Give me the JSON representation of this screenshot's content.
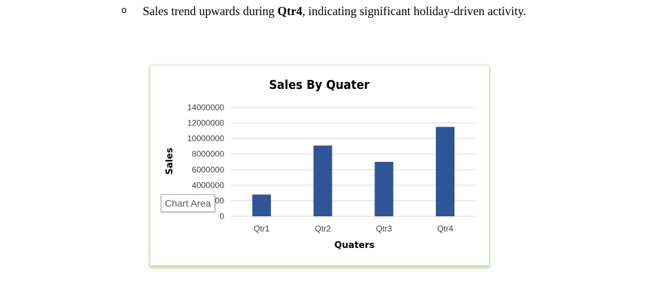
{
  "bullet": {
    "marker": "o",
    "text_before": "Sales trend upwards during ",
    "text_bold": "Qtr4",
    "text_after": ", indicating significant holiday-driven activity."
  },
  "tooltip": "Chart Area",
  "colors": {
    "bar": "#2f5597",
    "grid": "#d9d9d9",
    "frame_shadow": "#8cbe64"
  },
  "chart_data": {
    "type": "bar",
    "title": "Sales By Quater",
    "xlabel": "Quaters",
    "ylabel": "Sales",
    "categories": [
      "Qtr1",
      "Qtr2",
      "Qtr3",
      "Qtr4"
    ],
    "values": [
      2800000,
      9100000,
      7000000,
      11500000
    ],
    "ylim": [
      0,
      14000000
    ],
    "yticks": [
      "0",
      "2000000",
      "4000000",
      "6000000",
      "8000000",
      "10000000",
      "12000000",
      "14000000"
    ],
    "grid": true,
    "legend": "none"
  }
}
